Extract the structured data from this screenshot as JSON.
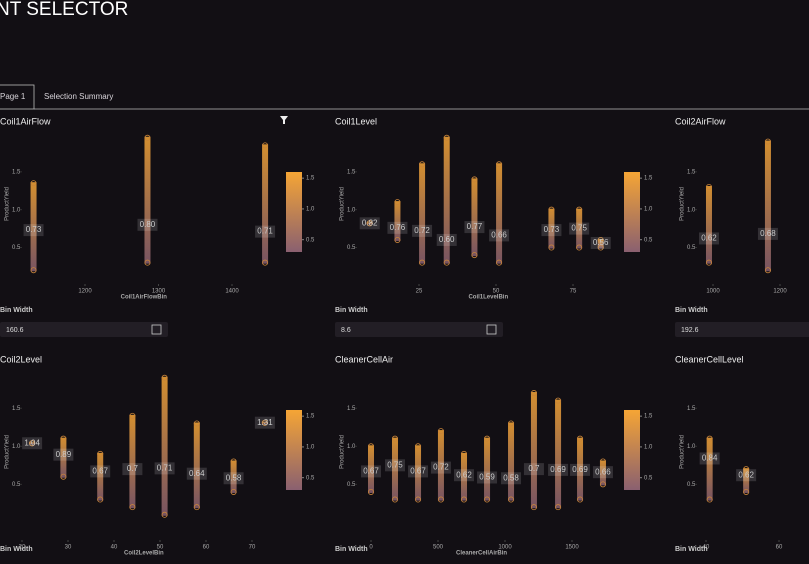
{
  "header": {
    "title": "NT SELECTOR"
  },
  "tabs": [
    "Page 1",
    "Selection Summary"
  ],
  "panels": [
    {
      "title": "Coil1AirFlow",
      "y_label": "ProductYield",
      "x_label": "Coil1AirFlowBin",
      "xlim": [
        1100,
        1460
      ],
      "ylim": [
        0.15,
        2.0
      ],
      "yticks": [
        1.5,
        {
          "value": 1,
          "label": "1.0"
        },
        0.5
      ],
      "xticks": [
        1200,
        1300,
        1400
      ],
      "colorbar_ticks": [
        1.5,
        {
          "value": 1,
          "label": "1.0"
        },
        0.5
      ],
      "columns": [
        {
          "x": 1130,
          "min": 0.2,
          "max": 1.35,
          "mean": "0.73"
        },
        {
          "x": 1285,
          "min": 0.3,
          "max": 1.95,
          "mean": "0.80"
        },
        {
          "x": 1445,
          "min": 0.3,
          "max": 1.85,
          "mean": "0.71"
        }
      ],
      "bin_width_label": "Bin Width",
      "bin_width": "160.6"
    },
    {
      "title": "Coil1Level",
      "y_label": "ProductYield",
      "x_label": "Coil1LevelBin",
      "xlim": [
        5,
        90
      ],
      "ylim": [
        0.15,
        2.0
      ],
      "yticks": [
        1.5,
        {
          "value": 1,
          "label": "1.0"
        },
        0.5
      ],
      "xticks": [
        25,
        50,
        75
      ],
      "colorbar_ticks": [
        1.5,
        {
          "value": 1,
          "label": "1.0"
        },
        0.5
      ],
      "columns": [
        {
          "x": 9,
          "min": 0.82,
          "max": 0.82,
          "mean": "0.82"
        },
        {
          "x": 18,
          "min": 0.6,
          "max": 1.1,
          "mean": "0.76"
        },
        {
          "x": 26,
          "min": 0.3,
          "max": 1.6,
          "mean": "0.72"
        },
        {
          "x": 34,
          "min": 0.3,
          "max": 1.95,
          "mean": "0.60"
        },
        {
          "x": 43,
          "min": 0.4,
          "max": 1.4,
          "mean": "0.77"
        },
        {
          "x": 51,
          "min": 0.3,
          "max": 1.6,
          "mean": "0.66"
        },
        {
          "x": 68,
          "min": 0.5,
          "max": 1.0,
          "mean": "0.73"
        },
        {
          "x": 77,
          "min": 0.5,
          "max": 1.0,
          "mean": "0.75"
        },
        {
          "x": 84,
          "min": 0.5,
          "max": 0.6,
          "mean": "0.56"
        }
      ],
      "bin_width_label": "Bin Width",
      "bin_width": "8.6"
    },
    {
      "title": "Coil2AirFlow",
      "y_label": "ProductYield",
      "x_label": "",
      "xlim": [
        950,
        1250
      ],
      "ylim": [
        0.15,
        2.0
      ],
      "yticks": [
        1.5,
        {
          "value": 1,
          "label": "1.0"
        },
        0.5
      ],
      "xticks": [
        1000,
        1200
      ],
      "colorbar_ticks": [],
      "columns": [
        {
          "x": 988,
          "min": 0.3,
          "max": 1.3,
          "mean": "0.62"
        },
        {
          "x": 1164,
          "min": 0.2,
          "max": 1.9,
          "mean": "0.68"
        }
      ],
      "bin_width_label": "Bin Width",
      "bin_width": "192.6"
    },
    {
      "title": "Coil2Level",
      "y_label": "ProductYield",
      "x_label": "Coil2LevelBin",
      "xlim": [
        18,
        75
      ],
      "ylim": [
        -0.1,
        1.95
      ],
      "yticks": [
        1.5,
        {
          "value": 1,
          "label": "1.0"
        },
        0.5
      ],
      "xticks": [
        20,
        30,
        40,
        50,
        60,
        70
      ],
      "colorbar_ticks": [
        1.5,
        {
          "value": 1,
          "label": "1.0"
        },
        0.5
      ],
      "columns": [
        {
          "x": 22.2,
          "min": 1.04,
          "max": 1.04,
          "mean": "1.04"
        },
        {
          "x": 29,
          "min": 0.6,
          "max": 1.1,
          "mean": "0.89"
        },
        {
          "x": 37,
          "min": 0.3,
          "max": 0.9,
          "mean": "0.67"
        },
        {
          "x": 44,
          "min": 0.2,
          "max": 1.4,
          "mean": "0.7"
        },
        {
          "x": 51,
          "min": 0.1,
          "max": 1.9,
          "mean": "0.71"
        },
        {
          "x": 58,
          "min": 0.2,
          "max": 1.3,
          "mean": "0.64"
        },
        {
          "x": 66,
          "min": 0.4,
          "max": 0.8,
          "mean": "0.58"
        },
        {
          "x": 72.8,
          "min": 1.31,
          "max": 1.31,
          "mean": "1.31"
        }
      ],
      "bin_width_label": "Bin Width"
    },
    {
      "title": "CleanerCellAir",
      "y_label": "ProductYield",
      "x_label": "CleanerCellAirBin",
      "xlim": [
        -100,
        1750
      ],
      "ylim": [
        -0.1,
        1.95
      ],
      "yticks": [
        1.5,
        {
          "value": 1,
          "label": "1.0"
        },
        0.5
      ],
      "xticks": [
        0,
        500,
        1000,
        1500
      ],
      "colorbar_ticks": [
        1.5,
        {
          "value": 1,
          "label": "1.0"
        },
        0.5
      ],
      "columns": [
        {
          "x": 0,
          "min": 0.4,
          "max": 1.0,
          "mean": "0.67"
        },
        {
          "x": 179,
          "min": 0.3,
          "max": 1.1,
          "mean": "0.75"
        },
        {
          "x": 351,
          "min": 0.3,
          "max": 1.0,
          "mean": "0.67"
        },
        {
          "x": 522,
          "min": 0.3,
          "max": 1.2,
          "mean": "0.72"
        },
        {
          "x": 694,
          "min": 0.3,
          "max": 0.9,
          "mean": "0.62"
        },
        {
          "x": 866,
          "min": 0.3,
          "max": 1.1,
          "mean": "0.59"
        },
        {
          "x": 1045,
          "min": 0.3,
          "max": 1.3,
          "mean": "0.58"
        },
        {
          "x": 1216,
          "min": 0.2,
          "max": 1.7,
          "mean": "0.7"
        },
        {
          "x": 1396,
          "min": 0.2,
          "max": 1.6,
          "mean": "0.69"
        },
        {
          "x": 1560,
          "min": 0.3,
          "max": 1.1,
          "mean": "0.69"
        },
        {
          "x": 1731,
          "min": 0.5,
          "max": 0.8,
          "mean": "0.66"
        }
      ],
      "bin_width_label": "Bin Width"
    },
    {
      "title": "CleanerCellLevel",
      "y_label": "ProductYield",
      "x_label": "",
      "xlim": [
        35,
        75
      ],
      "ylim": [
        -0.1,
        1.95
      ],
      "yticks": [
        1.5,
        {
          "value": 1,
          "label": "1.0"
        },
        0.5
      ],
      "xticks": [
        40,
        60
      ],
      "colorbar_ticks": [],
      "columns": [
        {
          "x": 41,
          "min": 0.3,
          "max": 1.1,
          "mean": "0.84"
        },
        {
          "x": 51,
          "min": 0.4,
          "max": 0.7,
          "mean": "0.62"
        }
      ],
      "bin_width_label": "Bin Width"
    }
  ]
}
